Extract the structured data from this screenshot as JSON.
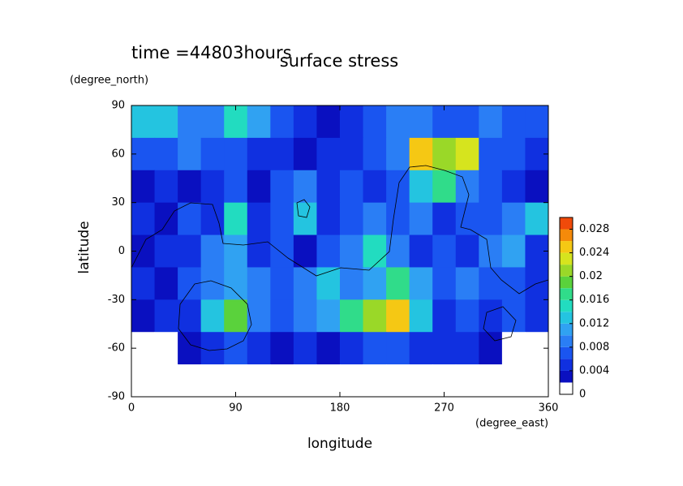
{
  "chart_data": {
    "type": "contour",
    "title": "surface stress",
    "subtitle": "time =44803hours",
    "x_label": "longitude",
    "x_unit": "(degree_east)",
    "y_label": "latitude",
    "y_unit": "(degree_north)",
    "xlim": [
      0,
      360
    ],
    "xticks": [
      0,
      90,
      180,
      270,
      360
    ],
    "ylim": [
      -90,
      90
    ],
    "yticks": [
      90,
      60,
      30,
      0,
      -30,
      -60,
      -90
    ],
    "x": [
      10,
      30,
      50,
      70,
      90,
      110,
      130,
      150,
      170,
      190,
      210,
      230,
      250,
      270,
      290,
      310,
      330,
      350
    ],
    "y": [
      80,
      60,
      40,
      20,
      0,
      -20,
      -40,
      -60,
      -80
    ],
    "z": [
      [
        0.012,
        0.012,
        0.008,
        0.008,
        0.014,
        0.01,
        0.006,
        0.004,
        0.002,
        0.004,
        0.006,
        0.008,
        0.008,
        0.006,
        0.006,
        0.008,
        0.006,
        0.006
      ],
      [
        0.006,
        0.006,
        0.008,
        0.006,
        0.006,
        0.004,
        0.004,
        0.002,
        0.004,
        0.004,
        0.006,
        0.008,
        0.024,
        0.02,
        0.022,
        0.006,
        0.006,
        0.004
      ],
      [
        0.002,
        0.004,
        0.002,
        0.004,
        0.006,
        0.002,
        0.006,
        0.008,
        0.004,
        0.006,
        0.004,
        0.006,
        0.012,
        0.016,
        0.008,
        0.006,
        0.004,
        0.002
      ],
      [
        0.004,
        0.002,
        0.006,
        0.004,
        0.014,
        0.004,
        0.006,
        0.012,
        0.004,
        0.006,
        0.008,
        0.006,
        0.008,
        0.004,
        0.006,
        0.006,
        0.008,
        0.012
      ],
      [
        0.002,
        0.004,
        0.004,
        0.008,
        0.01,
        0.004,
        0.006,
        0.002,
        0.006,
        0.008,
        0.014,
        0.008,
        0.004,
        0.006,
        0.004,
        0.008,
        0.01,
        0.004
      ],
      [
        0.004,
        0.002,
        0.006,
        0.008,
        0.01,
        0.008,
        0.006,
        0.008,
        0.012,
        0.008,
        0.01,
        0.016,
        0.01,
        0.006,
        0.008,
        0.006,
        0.006,
        0.004
      ],
      [
        0.002,
        0.004,
        0.004,
        0.012,
        0.018,
        0.008,
        0.006,
        0.008,
        0.01,
        0.016,
        0.02,
        0.024,
        0.012,
        0.004,
        0.006,
        0.004,
        0.006,
        0.004
      ],
      [
        0,
        0,
        0.002,
        0.004,
        0.006,
        0.004,
        0.002,
        0.004,
        0.002,
        0.004,
        0.006,
        0.006,
        0.004,
        0.004,
        0.004,
        0.002,
        0,
        0
      ],
      [
        0,
        0,
        0,
        0,
        0,
        0,
        0,
        0,
        0,
        0,
        0,
        0,
        0,
        0,
        0,
        0,
        0,
        0
      ]
    ],
    "clim": [
      0,
      0.03
    ],
    "colorbar_ticks": [
      0,
      0.004,
      0.008,
      0.012,
      0.016,
      0.02,
      0.024,
      0.028
    ],
    "colors": [
      "#ffffff",
      "#0a10c0",
      "#1030e0",
      "#1a55f0",
      "#2a7ef5",
      "#30a2f2",
      "#24c4e0",
      "#22dcc0",
      "#30dc8a",
      "#5ad23c",
      "#9ad828",
      "#d6e41e",
      "#f5c814",
      "#f58a0a",
      "#f04a0a"
    ]
  }
}
